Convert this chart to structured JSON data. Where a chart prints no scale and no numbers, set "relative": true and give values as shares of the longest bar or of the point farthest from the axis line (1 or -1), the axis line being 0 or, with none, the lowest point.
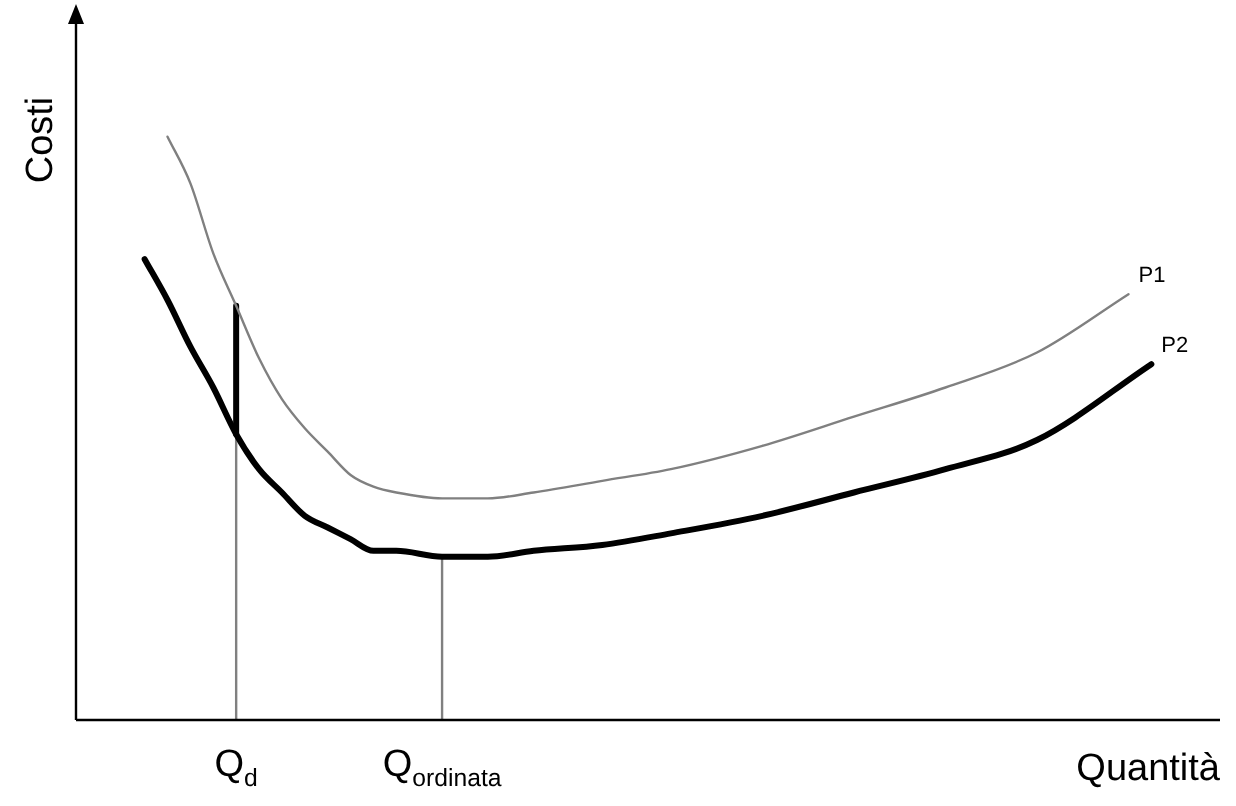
{
  "chart_data": {
    "type": "line",
    "relative": true,
    "xlabel": "Quantità",
    "ylabel": "Costi",
    "categories": [
      null,
      null,
      null,
      null,
      null,
      null,
      null,
      "Q$_{d}$",
      null,
      null,
      null,
      null,
      null,
      null,
      null,
      null,
      "Q$_{ordinata}$",
      null,
      null,
      null,
      null,
      null,
      null,
      null,
      null,
      null,
      null,
      null,
      null,
      null,
      null,
      null,
      null,
      null,
      null,
      null,
      null,
      null,
      null,
      null,
      null,
      null,
      null,
      null,
      null,
      null,
      null,
      null,
      null,
      null,
      null
    ],
    "legend": false,
    "grid": false,
    "marker": "none",
    "line_style": "solid",
    "series": [
      {
        "name": "P1",
        "color": "#808080",
        "values": [
          null,
          null,
          null,
          null,
          1.0,
          0.92,
          0.8,
          0.71,
          0.62,
          0.55,
          0.5,
          0.46,
          0.42,
          0.4,
          0.39,
          null,
          0.38,
          null,
          0.38,
          null,
          0.39,
          null,
          null,
          0.41,
          null,
          null,
          0.43,
          null,
          null,
          null,
          0.47,
          null,
          null,
          null,
          0.52,
          null,
          null,
          null,
          0.57,
          null,
          null,
          null,
          0.63,
          null,
          null,
          null,
          0.73,
          null,
          null,
          null,
          null
        ]
      },
      {
        "name": "P2",
        "color": "#000000",
        "values": [
          null,
          null,
          null,
          0.79,
          0.72,
          0.64,
          0.57,
          0.49,
          0.43,
          0.39,
          0.35,
          0.33,
          0.31,
          0.29,
          0.29,
          null,
          0.28,
          null,
          0.28,
          null,
          0.29,
          null,
          null,
          0.3,
          null,
          null,
          0.32,
          null,
          null,
          null,
          0.35,
          null,
          null,
          null,
          0.39,
          null,
          null,
          null,
          0.43,
          null,
          null,
          null,
          0.48,
          null,
          null,
          null,
          null,
          0.61,
          null,
          null,
          null
        ]
      },
      {
        "color": "#000000",
        "x": [
          "Q$_{d}$",
          "Q$_{d}$"
        ],
        "values": [
          0.49,
          0.71
        ]
      },
      {
        "color": "#808080",
        "x": [
          "Q$_{d}$",
          "Q$_{d}$"
        ],
        "values": [
          0,
          0.49
        ]
      },
      {
        "color": "#808080",
        "x": [
          "Q$_{ordinata}$",
          "Q$_{ordinata}$"
        ],
        "values": [
          0,
          0.28
        ]
      }
    ]
  }
}
